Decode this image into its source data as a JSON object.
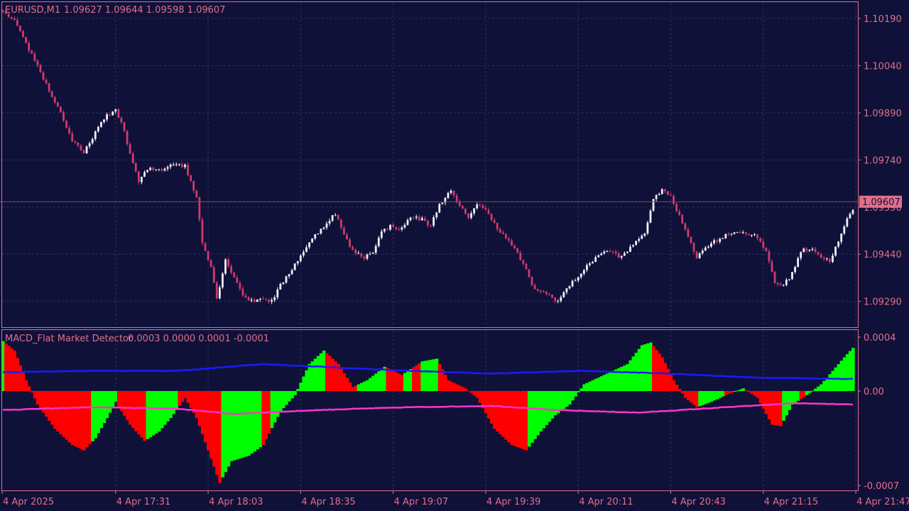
{
  "colors": {
    "background": "#0f1139",
    "frame": "#e26f8a",
    "grid": "#2a3559",
    "text": "#e26f8a",
    "candle_up": "#f4eef7",
    "candle_down": "#d13a6a",
    "hist_up": "#00ff00",
    "hist_down": "#ff0000",
    "signal_line": "#1a1aff",
    "lower_line": "#ff33cc",
    "price_tag_bg": "#e26f8a"
  },
  "header": {
    "symbol": "EURUSD,M1",
    "ohlc": "1.09627 1.09644 1.09598 1.09607"
  },
  "indicator_header": {
    "name": "MACD_Flat Market Detector",
    "values": "0.0003 0.0000 0.0001 -0.0001"
  },
  "price_axis": {
    "ticks": [
      "1.10190",
      "1.10040",
      "1.09890",
      "1.09740",
      "1.09590",
      "1.09440",
      "1.09290"
    ],
    "current_price": "1.09607"
  },
  "indicator_axis": {
    "ticks": [
      "0.0004",
      "0.00",
      "-0.0007"
    ]
  },
  "time_axis": {
    "labels": [
      "4 Apr 2025",
      "4 Apr 17:31",
      "4 Apr 18:03",
      "4 Apr 18:35",
      "4 Apr 19:07",
      "4 Apr 19:39",
      "4 Apr 20:11",
      "4 Apr 20:43",
      "4 Apr 21:15",
      "4 Apr 21:47"
    ]
  },
  "chart_data": {
    "type": "candlestick",
    "symbol": "EURUSD",
    "timeframe": "M1",
    "date": "4 Apr 2025",
    "price_range": [
      1.0921,
      1.1024
    ],
    "price_anchors": [
      [
        0,
        1.1021
      ],
      [
        4,
        1.1018
      ],
      [
        8,
        1.1011
      ],
      [
        12,
        1.1004
      ],
      [
        16,
        1.0996
      ],
      [
        20,
        1.0989
      ],
      [
        24,
        1.098
      ],
      [
        28,
        1.0976
      ],
      [
        32,
        1.0983
      ],
      [
        36,
        1.0988
      ],
      [
        39,
        1.099
      ],
      [
        41,
        1.0986
      ],
      [
        44,
        1.0976
      ],
      [
        47,
        1.0967
      ],
      [
        50,
        1.0971
      ],
      [
        55,
        1.0971
      ],
      [
        59,
        1.0973
      ],
      [
        63,
        1.0972
      ],
      [
        67,
        1.0962
      ],
      [
        69,
        1.0948
      ],
      [
        72,
        1.094
      ],
      [
        74,
        1.093
      ],
      [
        77,
        1.0942
      ],
      [
        80,
        1.0937
      ],
      [
        83,
        1.0931
      ],
      [
        86,
        1.0929
      ],
      [
        90,
        1.093
      ],
      [
        93,
        1.0929
      ],
      [
        96,
        1.0934
      ],
      [
        99,
        1.0938
      ],
      [
        104,
        1.0945
      ],
      [
        108,
        1.095
      ],
      [
        112,
        1.0954
      ],
      [
        115,
        1.0957
      ],
      [
        118,
        1.095
      ],
      [
        121,
        1.0945
      ],
      [
        125,
        1.0943
      ],
      [
        128,
        1.0945
      ],
      [
        131,
        1.0951
      ],
      [
        134,
        1.0953
      ],
      [
        138,
        1.0952
      ],
      [
        141,
        1.0956
      ],
      [
        145,
        1.0955
      ],
      [
        148,
        1.0953
      ],
      [
        151,
        1.096
      ],
      [
        155,
        1.0964
      ],
      [
        158,
        1.0959
      ],
      [
        161,
        1.0956
      ],
      [
        164,
        1.096
      ],
      [
        168,
        1.0957
      ],
      [
        172,
        1.0951
      ],
      [
        176,
        1.0947
      ],
      [
        180,
        1.0941
      ],
      [
        183,
        1.0934
      ],
      [
        186,
        1.0932
      ],
      [
        189,
        1.0931
      ],
      [
        192,
        1.0929
      ],
      [
        195,
        1.0933
      ],
      [
        198,
        1.0936
      ],
      [
        202,
        1.094
      ],
      [
        206,
        1.0944
      ],
      [
        210,
        1.0945
      ],
      [
        214,
        1.0943
      ],
      [
        218,
        1.0947
      ],
      [
        222,
        1.0951
      ],
      [
        225,
        1.0961
      ],
      [
        228,
        1.0965
      ],
      [
        231,
        1.0962
      ],
      [
        234,
        1.0956
      ],
      [
        237,
        1.095
      ],
      [
        240,
        1.0943
      ],
      [
        244,
        1.0947
      ],
      [
        248,
        1.0949
      ],
      [
        252,
        1.0951
      ],
      [
        256,
        1.0951
      ],
      [
        260,
        1.095
      ],
      [
        264,
        1.0945
      ],
      [
        267,
        1.0935
      ],
      [
        270,
        1.0934
      ],
      [
        273,
        1.0938
      ],
      [
        276,
        1.0945
      ],
      [
        280,
        1.0946
      ],
      [
        283,
        1.0943
      ],
      [
        286,
        1.0942
      ],
      [
        289,
        1.0948
      ],
      [
        292,
        1.0955
      ],
      [
        294,
        1.0958
      ]
    ],
    "histogram_range": [
      -0.0007,
      0.0004
    ],
    "histogram_anchors": [
      [
        0,
        0.00037
      ],
      [
        4,
        0.0003
      ],
      [
        8,
        8e-05
      ],
      [
        12,
        -0.0001
      ],
      [
        18,
        -0.00028
      ],
      [
        24,
        -0.0004
      ],
      [
        28,
        -0.00044
      ],
      [
        32,
        -0.00035
      ],
      [
        36,
        -0.0002
      ],
      [
        39,
        -8e-05
      ],
      [
        44,
        -0.00025
      ],
      [
        49,
        -0.00037
      ],
      [
        54,
        -0.0003
      ],
      [
        58,
        -0.0002
      ],
      [
        63,
        -5e-05
      ],
      [
        67,
        -0.0002
      ],
      [
        72,
        -0.0005
      ],
      [
        75,
        -0.00068
      ],
      [
        79,
        -0.00052
      ],
      [
        85,
        -0.00048
      ],
      [
        90,
        -0.0004
      ],
      [
        96,
        -0.00015
      ],
      [
        101,
        -3e-05
      ],
      [
        106,
        0.0002
      ],
      [
        111,
        0.0003
      ],
      [
        116,
        0.0002
      ],
      [
        121,
        3e-05
      ],
      [
        126,
        8e-05
      ],
      [
        132,
        0.00018
      ],
      [
        138,
        0.00012
      ],
      [
        145,
        0.00022
      ],
      [
        150,
        0.00024
      ],
      [
        154,
        8e-05
      ],
      [
        160,
        2e-05
      ],
      [
        164,
        -5e-05
      ],
      [
        170,
        -0.00028
      ],
      [
        176,
        -0.0004
      ],
      [
        181,
        -0.00044
      ],
      [
        186,
        -0.0003
      ],
      [
        191,
        -0.00018
      ],
      [
        196,
        -0.0001
      ],
      [
        201,
        5e-05
      ],
      [
        206,
        0.0001
      ],
      [
        211,
        0.00015
      ],
      [
        216,
        0.0002
      ],
      [
        221,
        0.00034
      ],
      [
        224,
        0.00036
      ],
      [
        228,
        0.00025
      ],
      [
        232,
        8e-05
      ],
      [
        236,
        -5e-05
      ],
      [
        240,
        -0.00012
      ],
      [
        245,
        -8e-05
      ],
      [
        250,
        -3e-05
      ],
      [
        256,
        2e-05
      ],
      [
        261,
        -5e-05
      ],
      [
        266,
        -0.00025
      ],
      [
        269,
        -0.00026
      ],
      [
        273,
        -0.0001
      ],
      [
        278,
        -3e-05
      ],
      [
        283,
        5e-05
      ],
      [
        287,
        0.00015
      ],
      [
        291,
        0.00025
      ],
      [
        294,
        0.00032
      ]
    ],
    "red_override_bars": [
      28,
      29,
      30,
      61,
      62,
      63,
      64,
      90,
      91,
      92,
      120,
      121,
      122,
      142,
      143,
      144,
      250,
      251,
      252,
      276,
      277
    ],
    "signal_line_anchors": [
      [
        0,
        0.00014
      ],
      [
        30,
        0.00015
      ],
      [
        60,
        0.00015
      ],
      [
        90,
        0.0002
      ],
      [
        110,
        0.00018
      ],
      [
        140,
        0.00015
      ],
      [
        170,
        0.00013
      ],
      [
        200,
        0.00015
      ],
      [
        230,
        0.00013
      ],
      [
        260,
        0.0001
      ],
      [
        294,
        9e-05
      ]
    ],
    "lower_line_anchors": [
      [
        0,
        -0.00014
      ],
      [
        30,
        -0.00012
      ],
      [
        60,
        -0.00013
      ],
      [
        80,
        -0.00017
      ],
      [
        110,
        -0.00014
      ],
      [
        140,
        -0.00012
      ],
      [
        170,
        -0.00011
      ],
      [
        190,
        -0.00014
      ],
      [
        220,
        -0.00016
      ],
      [
        250,
        -0.00012
      ],
      [
        274,
        -9e-05
      ],
      [
        294,
        -0.0001
      ]
    ]
  }
}
